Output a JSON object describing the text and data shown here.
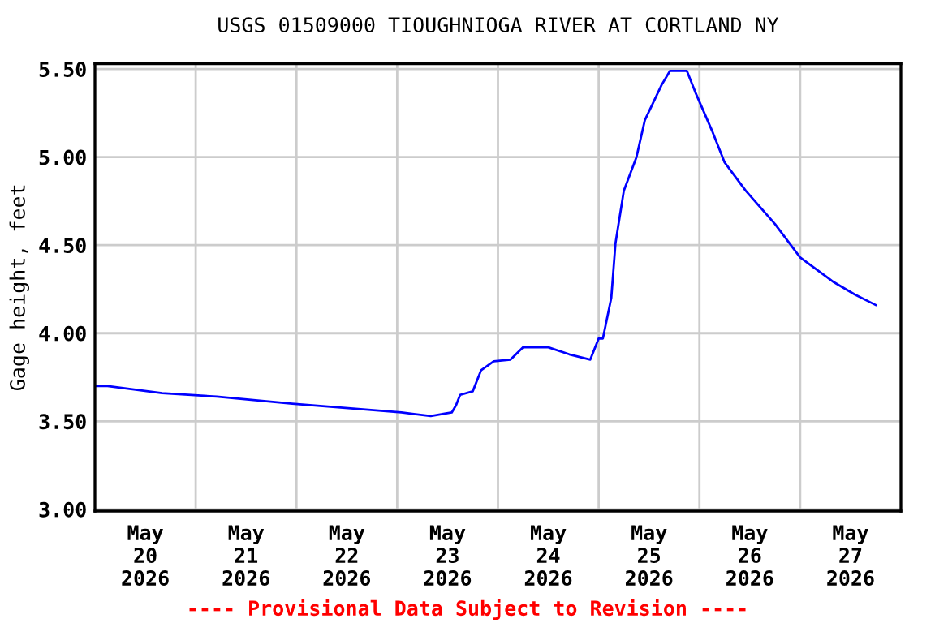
{
  "chart_data": {
    "type": "line",
    "title": "USGS 01509000 TIOUGHNIOGA RIVER AT CORTLAND NY",
    "ylabel": "Gage height, feet",
    "annotations": [
      "---- Provisional Data Subject to Revision ----"
    ],
    "x": [
      "2026-05-20T00:00",
      "2026-05-20T03:00",
      "2026-05-20T16:00",
      "2026-05-21T05:00",
      "2026-05-21T23:00",
      "2026-05-23T01:00",
      "2026-05-23T08:00",
      "2026-05-23T13:00",
      "2026-05-23T14:00",
      "2026-05-23T15:00",
      "2026-05-23T18:00",
      "2026-05-23T20:00",
      "2026-05-23T23:00",
      "2026-05-24T03:00",
      "2026-05-24T06:00",
      "2026-05-24T12:00",
      "2026-05-24T17:00",
      "2026-05-24T22:00",
      "2026-05-25T00:00",
      "2026-05-25T01:00",
      "2026-05-25T03:00",
      "2026-05-25T04:00",
      "2026-05-25T06:00",
      "2026-05-25T09:00",
      "2026-05-25T11:00",
      "2026-05-25T15:00",
      "2026-05-25T17:00",
      "2026-05-25T21:00",
      "2026-05-25T23:00",
      "2026-05-26T03:00",
      "2026-05-26T06:00",
      "2026-05-26T11:00",
      "2026-05-26T18:00",
      "2026-05-27T00:00",
      "2026-05-27T08:00",
      "2026-05-27T13:00",
      "2026-05-27T18:00"
    ],
    "series": [
      {
        "color": "#0000ff",
        "values": [
          3.7,
          3.7,
          3.66,
          3.64,
          3.6,
          3.55,
          3.53,
          3.55,
          3.59,
          3.65,
          3.67,
          3.79,
          3.84,
          3.85,
          3.92,
          3.92,
          3.88,
          3.85,
          3.97,
          3.97,
          4.2,
          4.51,
          4.81,
          5.0,
          5.21,
          5.41,
          5.49,
          5.49,
          5.37,
          5.15,
          4.97,
          4.81,
          4.62,
          4.43,
          4.29,
          4.22,
          4.16
        ]
      }
    ],
    "xlim": [
      "2026-05-20T00:00",
      "2026-05-28T00:00"
    ],
    "xticks": [
      {
        "value": "2026-05-20T12:00",
        "label": "May\n20\n2026"
      },
      {
        "value": "2026-05-21T00:00",
        "label": null
      },
      {
        "value": "2026-05-21T12:00",
        "label": "May\n21\n2026"
      },
      {
        "value": "2026-05-22T00:00",
        "label": null
      },
      {
        "value": "2026-05-22T12:00",
        "label": "May\n22\n2026"
      },
      {
        "value": "2026-05-23T00:00",
        "label": null
      },
      {
        "value": "2026-05-23T12:00",
        "label": "May\n23\n2026"
      },
      {
        "value": "2026-05-24T00:00",
        "label": null
      },
      {
        "value": "2026-05-24T12:00",
        "label": "May\n24\n2026"
      },
      {
        "value": "2026-05-25T00:00",
        "label": null
      },
      {
        "value": "2026-05-25T12:00",
        "label": "May\n25\n2026"
      },
      {
        "value": "2026-05-26T00:00",
        "label": null
      },
      {
        "value": "2026-05-26T12:00",
        "label": "May\n26\n2026"
      },
      {
        "value": "2026-05-27T00:00",
        "label": null
      },
      {
        "value": "2026-05-27T12:00",
        "label": "May\n27\n2026"
      }
    ],
    "ylim": [
      2.99,
      5.53
    ],
    "yticks": [
      {
        "value": 3.0,
        "label": "3.00"
      },
      {
        "value": 3.5,
        "label": "3.50"
      },
      {
        "value": 4.0,
        "label": "4.00"
      },
      {
        "value": 4.5,
        "label": "4.50"
      },
      {
        "value": 5.0,
        "label": "5.00"
      },
      {
        "value": 5.5,
        "label": "5.50"
      }
    ],
    "grid": true,
    "legend": false,
    "marker": "none",
    "line_style": "solid"
  }
}
